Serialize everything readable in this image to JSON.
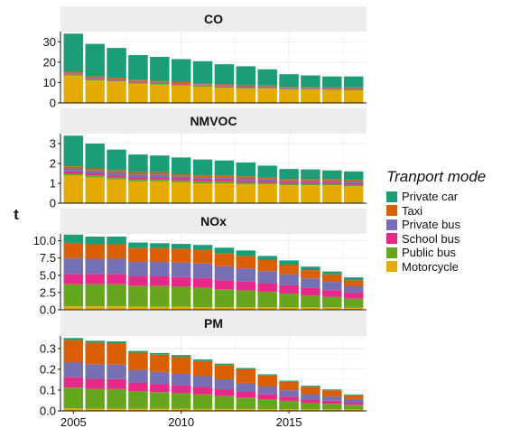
{
  "chart_data": {
    "type": "bar",
    "stacked": true,
    "faceted": true,
    "ylabel": "t",
    "xlabel": "",
    "x": [
      2005,
      2006,
      2007,
      2008,
      2009,
      2010,
      2011,
      2012,
      2013,
      2014,
      2015,
      2016,
      2017,
      2018
    ],
    "x_ticks": [
      2005,
      2010,
      2015
    ],
    "grid": true,
    "legend": {
      "title": "Tranport mode",
      "position": "right",
      "items": [
        {
          "name": "Private car",
          "color": "#1b9e77"
        },
        {
          "name": "Taxi",
          "color": "#d95f02"
        },
        {
          "name": "Private bus",
          "color": "#7570b3"
        },
        {
          "name": "School bus",
          "color": "#e7298a"
        },
        {
          "name": "Public bus",
          "color": "#66a61e"
        },
        {
          "name": "Motorcycle",
          "color": "#e6ab02"
        }
      ]
    },
    "facets": [
      {
        "name": "CO",
        "ylim": [
          0,
          35
        ],
        "yticks": [
          0,
          10,
          20,
          30
        ],
        "tick_labels": [
          "0",
          "10",
          "20",
          "30"
        ],
        "series": [
          {
            "name": "Motorcycle",
            "values": [
              13.5,
              11.0,
              10.5,
              9.5,
              9.0,
              8.5,
              8.0,
              7.5,
              7.0,
              7.0,
              6.5,
              6.5,
              6.3,
              6.2
            ]
          },
          {
            "name": "Public bus",
            "values": [
              0.5,
              0.5,
              0.5,
              0.5,
              0.5,
              0.5,
              0.5,
              0.5,
              0.5,
              0.4,
              0.4,
              0.4,
              0.4,
              0.4
            ]
          },
          {
            "name": "School bus",
            "values": [
              0.3,
              0.3,
              0.3,
              0.3,
              0.3,
              0.3,
              0.3,
              0.3,
              0.3,
              0.3,
              0.3,
              0.3,
              0.3,
              0.3
            ]
          },
          {
            "name": "Private bus",
            "values": [
              0.5,
              0.5,
              0.5,
              0.5,
              0.5,
              0.4,
              0.4,
              0.4,
              0.4,
              0.4,
              0.3,
              0.3,
              0.3,
              0.3
            ]
          },
          {
            "name": "Taxi",
            "values": [
              0.7,
              0.7,
              0.6,
              0.6,
              0.6,
              0.5,
              0.5,
              0.5,
              0.5,
              0.4,
              0.4,
              0.4,
              0.4,
              0.4
            ]
          },
          {
            "name": "Private car",
            "values": [
              18.5,
              16.0,
              14.6,
              12.1,
              11.7,
              11.3,
              10.8,
              9.8,
              9.3,
              8.0,
              6.2,
              5.6,
              5.3,
              5.4
            ]
          }
        ]
      },
      {
        "name": "NMVOC",
        "ylim": [
          0,
          3.5
        ],
        "yticks": [
          0,
          1,
          2,
          3
        ],
        "tick_labels": [
          "0",
          "1",
          "2",
          "3"
        ],
        "series": [
          {
            "name": "Motorcycle",
            "values": [
              1.4,
              1.3,
              1.2,
              1.1,
              1.1,
              1.05,
              1.0,
              1.0,
              0.95,
              0.95,
              0.9,
              0.9,
              0.9,
              0.85
            ]
          },
          {
            "name": "Public bus",
            "values": [
              0.1,
              0.1,
              0.1,
              0.1,
              0.1,
              0.1,
              0.1,
              0.1,
              0.1,
              0.08,
              0.08,
              0.08,
              0.08,
              0.08
            ]
          },
          {
            "name": "School bus",
            "values": [
              0.1,
              0.1,
              0.1,
              0.1,
              0.1,
              0.1,
              0.1,
              0.1,
              0.1,
              0.08,
              0.08,
              0.08,
              0.08,
              0.08
            ]
          },
          {
            "name": "Private bus",
            "values": [
              0.15,
              0.15,
              0.15,
              0.15,
              0.15,
              0.1,
              0.1,
              0.1,
              0.1,
              0.1,
              0.08,
              0.08,
              0.08,
              0.08
            ]
          },
          {
            "name": "Taxi",
            "values": [
              0.1,
              0.1,
              0.1,
              0.1,
              0.1,
              0.1,
              0.1,
              0.1,
              0.1,
              0.08,
              0.08,
              0.08,
              0.08,
              0.08
            ]
          },
          {
            "name": "Private car",
            "values": [
              1.55,
              1.25,
              1.05,
              0.9,
              0.85,
              0.85,
              0.8,
              0.75,
              0.7,
              0.6,
              0.5,
              0.48,
              0.43,
              0.43
            ]
          }
        ]
      },
      {
        "name": "NOx",
        "ylim": [
          0,
          11
        ],
        "yticks": [
          0,
          2.5,
          5,
          7.5,
          10
        ],
        "tick_labels": [
          "0.0",
          "2.5",
          "5.0",
          "7.5",
          "10.0"
        ],
        "series": [
          {
            "name": "Motorcycle",
            "values": [
              0.5,
              0.5,
              0.5,
              0.45,
              0.45,
              0.45,
              0.4,
              0.4,
              0.4,
              0.4,
              0.35,
              0.35,
              0.35,
              0.3
            ]
          },
          {
            "name": "Public bus",
            "values": [
              3.2,
              3.2,
              3.2,
              3.0,
              3.0,
              2.9,
              2.8,
              2.6,
              2.4,
              2.2,
              2.0,
              1.7,
              1.5,
              1.3
            ]
          },
          {
            "name": "School bus",
            "values": [
              1.5,
              1.5,
              1.5,
              1.4,
              1.4,
              1.4,
              1.4,
              1.3,
              1.3,
              1.2,
              1.2,
              1.1,
              1.0,
              0.9
            ]
          },
          {
            "name": "Private bus",
            "values": [
              2.3,
              2.2,
              2.2,
              2.1,
              2.1,
              2.1,
              2.1,
              2.0,
              1.9,
              1.8,
              1.6,
              1.4,
              1.2,
              0.9
            ]
          },
          {
            "name": "Taxi",
            "values": [
              2.2,
              2.1,
              2.1,
              2.0,
              2.0,
              2.0,
              2.0,
              1.9,
              1.8,
              1.6,
              1.4,
              1.2,
              1.1,
              0.9
            ]
          },
          {
            "name": "Private car",
            "values": [
              1.2,
              1.1,
              1.1,
              0.8,
              0.7,
              0.7,
              0.7,
              0.8,
              0.8,
              0.6,
              0.6,
              0.5,
              0.4,
              0.4
            ]
          }
        ]
      },
      {
        "name": "PM",
        "ylim": [
          0,
          0.36
        ],
        "yticks": [
          0,
          0.1,
          0.2,
          0.3
        ],
        "tick_labels": [
          "0.0",
          "0.1",
          "0.2",
          "0.3"
        ],
        "series": [
          {
            "name": "Motorcycle",
            "values": [
              0.012,
              0.011,
              0.011,
              0.01,
              0.01,
              0.01,
              0.009,
              0.009,
              0.009,
              0.008,
              0.008,
              0.007,
              0.007,
              0.007
            ]
          },
          {
            "name": "Public bus",
            "values": [
              0.1,
              0.095,
              0.094,
              0.085,
              0.08,
              0.075,
              0.07,
              0.063,
              0.055,
              0.048,
              0.04,
              0.032,
              0.027,
              0.022
            ]
          },
          {
            "name": "School bus",
            "values": [
              0.05,
              0.048,
              0.048,
              0.042,
              0.04,
              0.038,
              0.036,
              0.032,
              0.029,
              0.025,
              0.021,
              0.017,
              0.015,
              0.012
            ]
          },
          {
            "name": "Private bus",
            "values": [
              0.072,
              0.07,
              0.069,
              0.06,
              0.057,
              0.055,
              0.052,
              0.048,
              0.042,
              0.036,
              0.03,
              0.024,
              0.02,
              0.016
            ]
          },
          {
            "name": "Taxi",
            "values": [
              0.106,
              0.104,
              0.103,
              0.083,
              0.083,
              0.082,
              0.073,
              0.068,
              0.065,
              0.053,
              0.041,
              0.036,
              0.03,
              0.018
            ]
          },
          {
            "name": "Private car",
            "values": [
              0.01,
              0.009,
              0.009,
              0.008,
              0.008,
              0.008,
              0.007,
              0.007,
              0.006,
              0.006,
              0.005,
              0.005,
              0.004,
              0.004
            ]
          }
        ]
      }
    ]
  }
}
